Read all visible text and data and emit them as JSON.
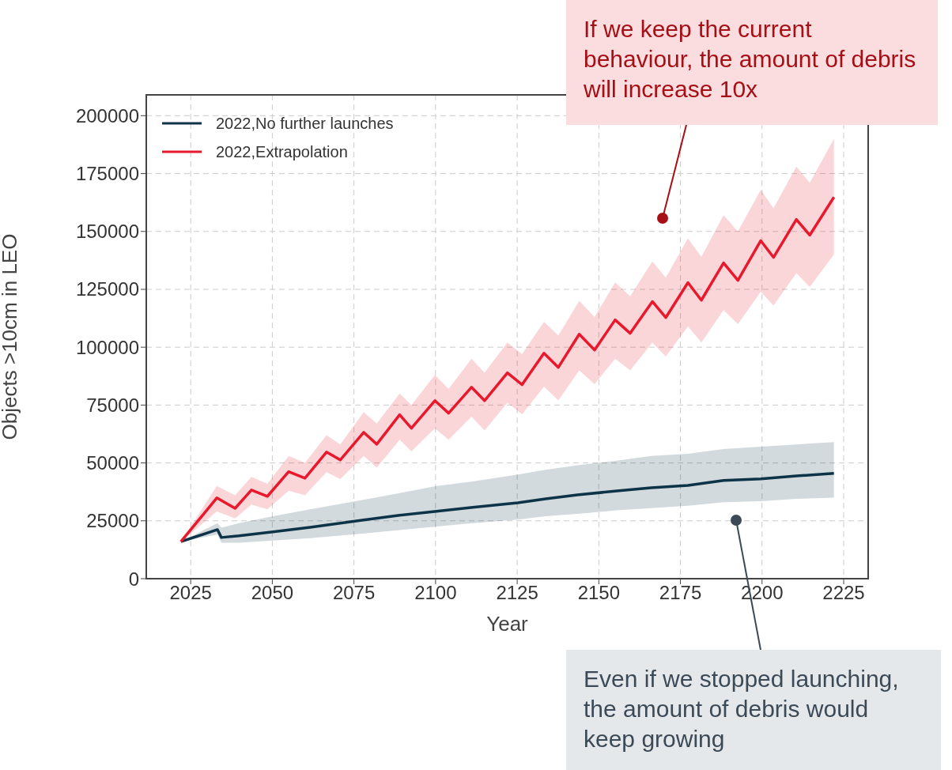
{
  "chart_data": {
    "type": "line",
    "xlabel": "Year",
    "ylabel": "Objects >10cm in LEO",
    "xlim": [
      2011.4,
      2232.5
    ],
    "xticks": [
      2025,
      2050,
      2075,
      2100,
      2125,
      2150,
      2175,
      2200,
      2225
    ],
    "ylim": [
      0,
      209000
    ],
    "yticks": [
      0,
      25000,
      50000,
      75000,
      100000,
      125000,
      150000,
      175000,
      200000
    ],
    "grid": true,
    "legend": "top left",
    "series": [
      {
        "name": "2022,No further launches",
        "color": "#0d3349",
        "x": [
          2022,
          2033.2,
          2034.4,
          2039.8,
          2050.2,
          2061.6,
          2077.5,
          2089,
          2100.3,
          2111.4,
          2125.2,
          2133.7,
          2143.4,
          2155.5,
          2166,
          2177.3,
          2188.2,
          2199.6,
          2210.5,
          2222
        ],
        "values": [
          16000,
          21200,
          17800,
          18500,
          20200,
          22200,
          25300,
          27400,
          29100,
          30800,
          32800,
          34500,
          36200,
          37900,
          39300,
          40300,
          42400,
          43100,
          44400,
          45500
        ],
        "lower": [
          16000,
          19000,
          15500,
          15500,
          16500,
          17500,
          19500,
          21000,
          22500,
          24000,
          25500,
          27000,
          28000,
          29500,
          30500,
          31500,
          33000,
          33500,
          34500,
          35000
        ],
        "upper": [
          16000,
          24000,
          22000,
          24000,
          27000,
          30000,
          34000,
          37000,
          40000,
          42000,
          45000,
          47000,
          49000,
          51000,
          53000,
          54000,
          56000,
          57000,
          58000,
          59000
        ]
      },
      {
        "name": "2022,Extrapolation",
        "color": "#e8192c",
        "x": [
          2022,
          2033,
          2038.6,
          2043.6,
          2048.5,
          2055,
          2060,
          2066.6,
          2070.8,
          2078,
          2082,
          2089,
          2092.6,
          2099.8,
          2104,
          2111,
          2115,
          2122,
          2126.5,
          2133.2,
          2137.6,
          2144,
          2148.7,
          2155,
          2159.6,
          2166.4,
          2170.5,
          2177.3,
          2181.4,
          2188.2,
          2192.6,
          2199.6,
          2203.5,
          2210.5,
          2214.6,
          2222
        ],
        "values": [
          16000,
          34900,
          30400,
          38300,
          35600,
          46200,
          43400,
          54700,
          51300,
          63200,
          58100,
          70800,
          65000,
          76900,
          71500,
          82700,
          76900,
          88900,
          83800,
          97400,
          91300,
          105600,
          98800,
          111800,
          106000,
          119700,
          112800,
          127900,
          120300,
          136400,
          128900,
          146000,
          138800,
          155200,
          148400,
          164800
        ],
        "lower": [
          16000,
          29000,
          26000,
          32000,
          30000,
          38000,
          36000,
          46000,
          43000,
          53000,
          48000,
          60000,
          55000,
          65000,
          60000,
          70000,
          64000,
          76000,
          71000,
          83000,
          77000,
          90000,
          84000,
          95000,
          90000,
          102000,
          96000,
          109000,
          102000,
          116000,
          110000,
          124000,
          118000,
          132000,
          126000,
          140000
        ],
        "upper": [
          16000,
          40000,
          36000,
          44000,
          41000,
          53000,
          50000,
          62000,
          58000,
          72000,
          67000,
          80000,
          75000,
          88000,
          82000,
          95000,
          89000,
          102000,
          97000,
          111000,
          105000,
          120000,
          113000,
          128000,
          122000,
          137000,
          130000,
          147000,
          139000,
          157000,
          150000,
          168000,
          160000,
          178000,
          171000,
          190000
        ]
      }
    ],
    "annotations": [
      "If we keep the current behaviour, the amount of debris will increase 10x",
      "Even if we stopped launching, the amount of debris would keep growing"
    ]
  }
}
